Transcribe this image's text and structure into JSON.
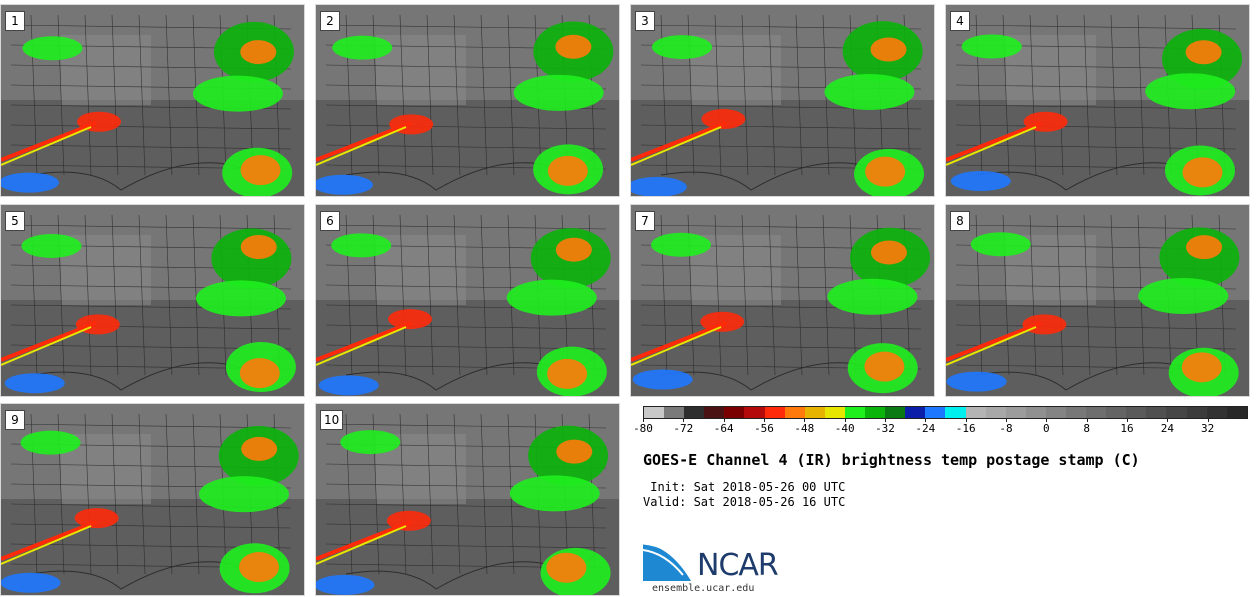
{
  "panels": [
    "1",
    "2",
    "3",
    "4",
    "5",
    "6",
    "7",
    "8",
    "9",
    "10"
  ],
  "colorbar": {
    "colors": [
      "#c8c8c8",
      "#7a7a7a",
      "#2e2e2e",
      "#4a1212",
      "#7a0000",
      "#b40a0a",
      "#ff2a0a",
      "#ff7a0a",
      "#e6b400",
      "#e6e600",
      "#1ef01e",
      "#0ab40a",
      "#0a7a14",
      "#0a1eaa",
      "#1e78ff",
      "#00f0f0",
      "#b4b4b4",
      "#a8a8a8",
      "#9c9c9c",
      "#909090",
      "#848484",
      "#787878",
      "#6e6e6e",
      "#646464",
      "#5a5a5a",
      "#505050",
      "#464646",
      "#3c3c3c",
      "#323232",
      "#282828"
    ],
    "ticks": [
      "-80",
      "-72",
      "-64",
      "-56",
      "-48",
      "-40",
      "-32",
      "-24",
      "-16",
      "-8",
      "0",
      "8",
      "16",
      "24",
      "32"
    ]
  },
  "title": "GOES-E Channel 4 (IR) brightness temp postage stamp (C)",
  "init": " Init: Sat 2018-05-26 00 UTC",
  "valid": "Valid: Sat 2018-05-26 16 UTC",
  "logo_text": "NCAR",
  "website": "ensemble.ucar.edu"
}
